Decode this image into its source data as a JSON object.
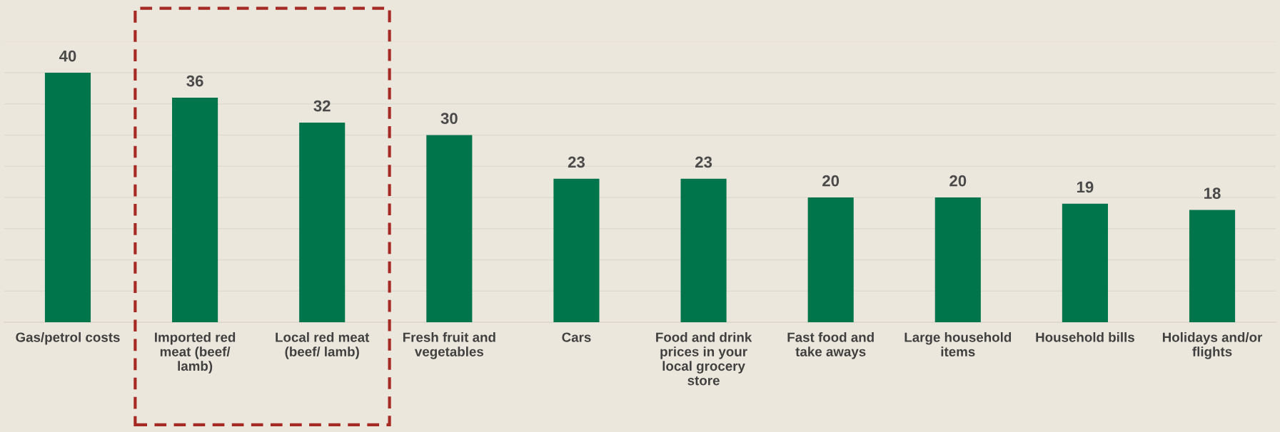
{
  "chart_data": {
    "type": "bar",
    "categories": [
      "Gas/petrol costs",
      "Imported red\nmeat (beef/\nlamb)",
      "Local red meat\n(beef/ lamb)",
      "Fresh fruit and\nvegetables",
      "Cars",
      "Food and drink\nprices in your\nlocal grocery\nstore",
      "Fast food and\ntake aways",
      "Large household\nitems",
      "Household bills",
      "Holidays and/or\nflights"
    ],
    "values": [
      40,
      36,
      32,
      30,
      23,
      23,
      20,
      20,
      19,
      18
    ],
    "color": "#00744a",
    "data_labels": true,
    "ylim": [
      0,
      45
    ],
    "yticks": [
      {
        "value": 0,
        "label": null
      },
      {
        "value": 5,
        "label": null
      },
      {
        "value": 10,
        "label": null
      },
      {
        "value": 15,
        "label": null
      },
      {
        "value": 20,
        "label": null
      },
      {
        "value": 25,
        "label": null
      },
      {
        "value": 30,
        "label": null
      },
      {
        "value": 35,
        "label": null
      },
      {
        "value": 40,
        "label": null
      },
      {
        "value": 45,
        "label": null
      }
    ],
    "grid": "y",
    "tick_labels": "x"
  }
}
